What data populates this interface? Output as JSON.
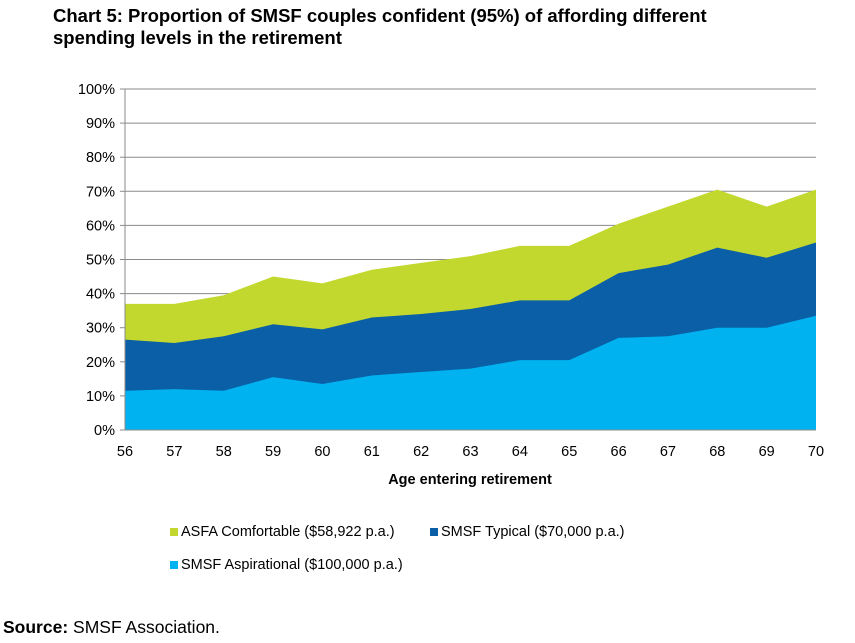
{
  "title_line1": "Chart 5: Proportion of SMSF couples confident (95%) of affording different",
  "title_line2": "spending levels in the retirement",
  "source": {
    "label": "Source:",
    "text": "SMSF Association."
  },
  "colors": {
    "comfortable": "#c3d82e",
    "typical": "#0a5fa6",
    "aspirational": "#00b2ef"
  },
  "chart_data": {
    "type": "area",
    "stacked": false,
    "x": [
      56,
      57,
      58,
      59,
      60,
      61,
      62,
      63,
      64,
      65,
      66,
      67,
      68,
      69,
      70
    ],
    "xlabel": "Age entering retirement",
    "ylabel": "",
    "ylim": [
      0,
      100
    ],
    "yticks": [
      "0%",
      "10%",
      "20%",
      "30%",
      "40%",
      "50%",
      "60%",
      "70%",
      "80%",
      "90%",
      "100%"
    ],
    "grid": true,
    "legend_position": "bottom",
    "series": [
      {
        "name": "ASFA Comfortable ($58,922 p.a.)",
        "color": "#c3d82e",
        "values": [
          37,
          37,
          39.5,
          45,
          43,
          47,
          49,
          51,
          54,
          54,
          60.5,
          65.5,
          70.5,
          65.5,
          70.5
        ]
      },
      {
        "name": "SMSF Typical ($70,000 p.a.)",
        "color": "#0a5fa6",
        "values": [
          26.5,
          25.5,
          27.5,
          31,
          29.5,
          33,
          34,
          35.5,
          38,
          38,
          46,
          48.5,
          53.5,
          50.5,
          55
        ]
      },
      {
        "name": "SMSF Aspirational ($100,000 p.a.)",
        "color": "#00b2ef",
        "values": [
          11.5,
          12,
          11.5,
          15.5,
          13.5,
          16,
          17,
          18,
          20.5,
          20.5,
          27,
          27.5,
          30,
          30,
          33.5
        ]
      }
    ]
  }
}
